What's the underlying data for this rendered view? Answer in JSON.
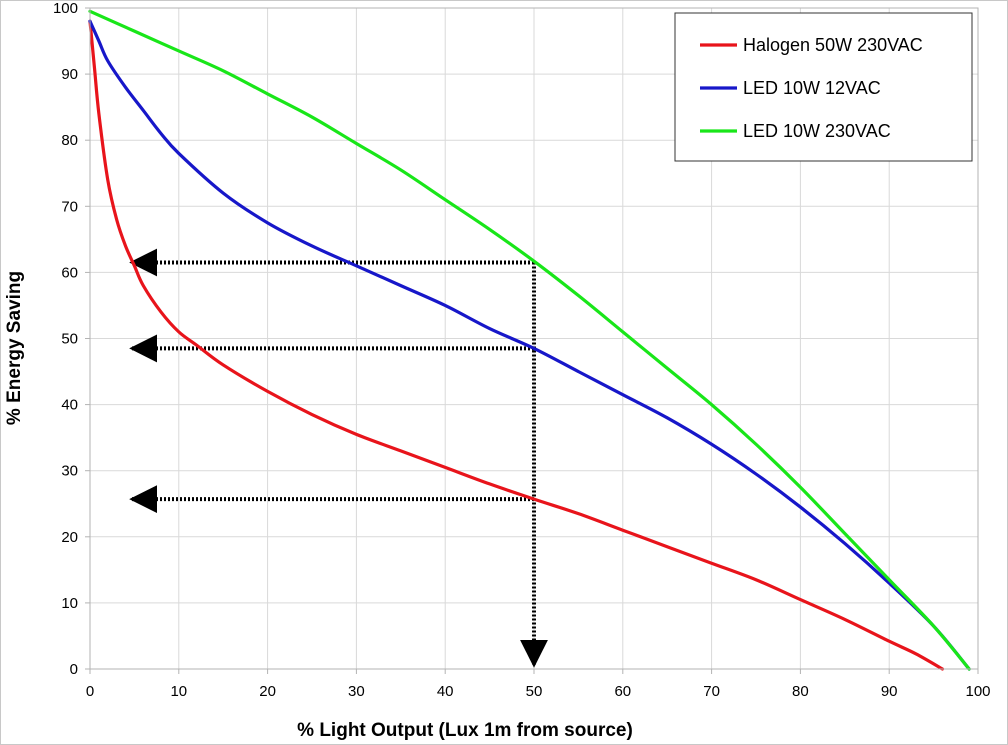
{
  "chart_data": {
    "type": "line",
    "title": "",
    "xlabel": "% Light Output (Lux 1m from source)",
    "ylabel": "% Energy Saving",
    "xlim": [
      0,
      100
    ],
    "ylim": [
      0,
      100
    ],
    "x_ticks": [
      "0",
      "10",
      "20",
      "30",
      "40",
      "50",
      "60",
      "70",
      "80",
      "90",
      "100"
    ],
    "y_ticks": [
      "0",
      "10",
      "20",
      "30",
      "40",
      "50",
      "60",
      "70",
      "80",
      "90",
      "100"
    ],
    "grid": true,
    "legend_position": "top-right",
    "series": [
      {
        "name": "Halogen 50W 230VAC",
        "color": "#e8141b",
        "x": [
          0,
          0.5,
          1,
          2,
          3,
          4,
          5,
          6,
          8,
          10,
          12,
          15,
          20,
          25,
          30,
          35,
          40,
          45,
          50,
          55,
          60,
          65,
          70,
          75,
          80,
          85,
          90,
          93,
          96
        ],
        "y": [
          98,
          91,
          84,
          74,
          68,
          64,
          61,
          58,
          54,
          51,
          49,
          46,
          42,
          38.5,
          35.5,
          33,
          30.5,
          28,
          25.7,
          23.5,
          21,
          18.5,
          16,
          13.5,
          10.5,
          7.5,
          4.2,
          2.3,
          0
        ]
      },
      {
        "name": "LED 10W 12VAC",
        "color": "#1717c9",
        "x": [
          0,
          1,
          2,
          4,
          6,
          8,
          10,
          15,
          20,
          25,
          30,
          35,
          40,
          45,
          50,
          55,
          60,
          65,
          70,
          75,
          80,
          85,
          90,
          95,
          99
        ],
        "y": [
          98,
          95,
          92,
          88,
          84.5,
          81,
          78,
          72,
          67.5,
          64,
          61,
          58,
          55,
          51.5,
          48.5,
          45,
          41.5,
          38,
          34,
          29.5,
          24.5,
          19,
          13,
          6.5,
          0
        ]
      },
      {
        "name": "LED 10W 230VAC",
        "color": "#19e619",
        "x": [
          0,
          5,
          10,
          15,
          20,
          25,
          30,
          35,
          40,
          45,
          50,
          55,
          60,
          65,
          70,
          75,
          80,
          85,
          90,
          95,
          99
        ],
        "y": [
          99.5,
          96.5,
          93.5,
          90.5,
          87,
          83.5,
          79.5,
          75.5,
          71,
          66.5,
          61.7,
          56.5,
          51,
          45.5,
          40,
          34,
          27.5,
          20.5,
          13.5,
          6.5,
          0
        ]
      }
    ],
    "annotations": [
      {
        "type": "dotted-arrow",
        "direction": "up",
        "x": 50,
        "y_from": 0,
        "y_to": 61.5
      },
      {
        "type": "dotted-arrow",
        "direction": "left",
        "y": 61.5,
        "x_from": 50,
        "x_to": 0
      },
      {
        "type": "dotted-arrow",
        "direction": "left",
        "y": 48.5,
        "x_from": 50,
        "x_to": 0
      },
      {
        "type": "dotted-arrow",
        "direction": "left",
        "y": 25.7,
        "x_from": 50,
        "x_to": 0
      }
    ]
  }
}
